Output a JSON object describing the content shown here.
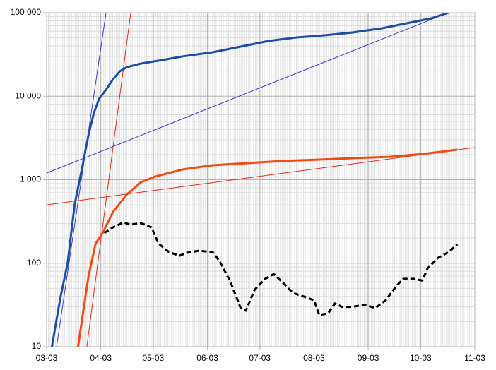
{
  "chart_data": {
    "type": "line",
    "log_y": true,
    "grid": true,
    "minor_grid": true,
    "xlim": [
      0,
      245
    ],
    "xticks": [
      {
        "value": 0,
        "label": "03-03"
      },
      {
        "value": 31,
        "label": "04-03"
      },
      {
        "value": 61,
        "label": "05-03"
      },
      {
        "value": 92,
        "label": "06-03"
      },
      {
        "value": 122,
        "label": "07-03"
      },
      {
        "value": 153,
        "label": "08-03"
      },
      {
        "value": 184,
        "label": "09-03"
      },
      {
        "value": 214,
        "label": "10-03"
      },
      {
        "value": 245,
        "label": "11-03"
      }
    ],
    "ylim": [
      10,
      100000
    ],
    "yticks": [
      10,
      100,
      {
        "value": 1000,
        "label": "1 000"
      },
      {
        "value": 10000,
        "label": "10 000"
      },
      {
        "value": 100000,
        "label": "100 000"
      }
    ],
    "series": [
      {
        "color": "#3a3ad0",
        "width": 1,
        "dash": false,
        "x": [
          5.7,
          34.0
        ],
        "values": [
          10,
          100000
        ]
      },
      {
        "color": "#3a3ad0",
        "width": 1,
        "dash": false,
        "x": [
          0,
          229.7
        ],
        "values": [
          1200,
          100000
        ]
      },
      {
        "color": "#e02a1a",
        "width": 1,
        "dash": false,
        "x": [
          23.0,
          48.1
        ],
        "values": [
          10,
          100000
        ]
      },
      {
        "color": "#e02a1a",
        "width": 1,
        "dash": false,
        "x": [
          0,
          245
        ],
        "values": [
          500,
          2430
        ]
      },
      {
        "color": "#1c4fa0",
        "width": 3,
        "dash": false,
        "x": [
          3,
          8,
          12,
          16,
          20,
          24,
          27,
          30,
          34,
          38,
          42,
          46,
          54,
          66,
          78,
          95,
          111,
          127,
          143,
          159,
          175,
          192,
          208,
          220,
          230
        ],
        "values": [
          10,
          40,
          100,
          500,
          1300,
          3500,
          6300,
          9300,
          12000,
          16000,
          20000,
          22300,
          24600,
          27100,
          30000,
          33600,
          39300,
          45900,
          50600,
          53600,
          58000,
          65100,
          76200,
          85500,
          100000
        ]
      },
      {
        "color": "#f24a12",
        "width": 3,
        "dash": false,
        "x": [
          18,
          21,
          24,
          28,
          32,
          38,
          46,
          54,
          62,
          78,
          95,
          115,
          135,
          155,
          175,
          196,
          216,
          235
        ],
        "values": [
          10,
          27,
          71,
          172,
          230,
          412,
          671,
          934,
          1090,
          1330,
          1490,
          1580,
          1680,
          1740,
          1810,
          1880,
          2040,
          2290
        ]
      },
      {
        "color": "#000000",
        "width": 3,
        "dash": true,
        "x": [
          33,
          38,
          44,
          48,
          54,
          60,
          64,
          70,
          76,
          80,
          87,
          95,
          99,
          105,
          111,
          114,
          119,
          125,
          130,
          135,
          141,
          147,
          153,
          156,
          161,
          165,
          169,
          175,
          182,
          188,
          194,
          200,
          204,
          210,
          215,
          218,
          224,
          230,
          235
        ],
        "values": [
          230,
          269,
          308,
          290,
          302,
          269,
          172,
          136,
          123,
          133,
          141,
          136,
          105,
          61,
          29,
          27,
          48,
          65,
          74,
          59,
          44,
          40,
          36,
          24,
          25,
          33,
          30,
          30,
          32,
          29,
          36,
          53,
          65,
          65,
          62,
          87,
          116,
          136,
          168
        ]
      }
    ]
  }
}
